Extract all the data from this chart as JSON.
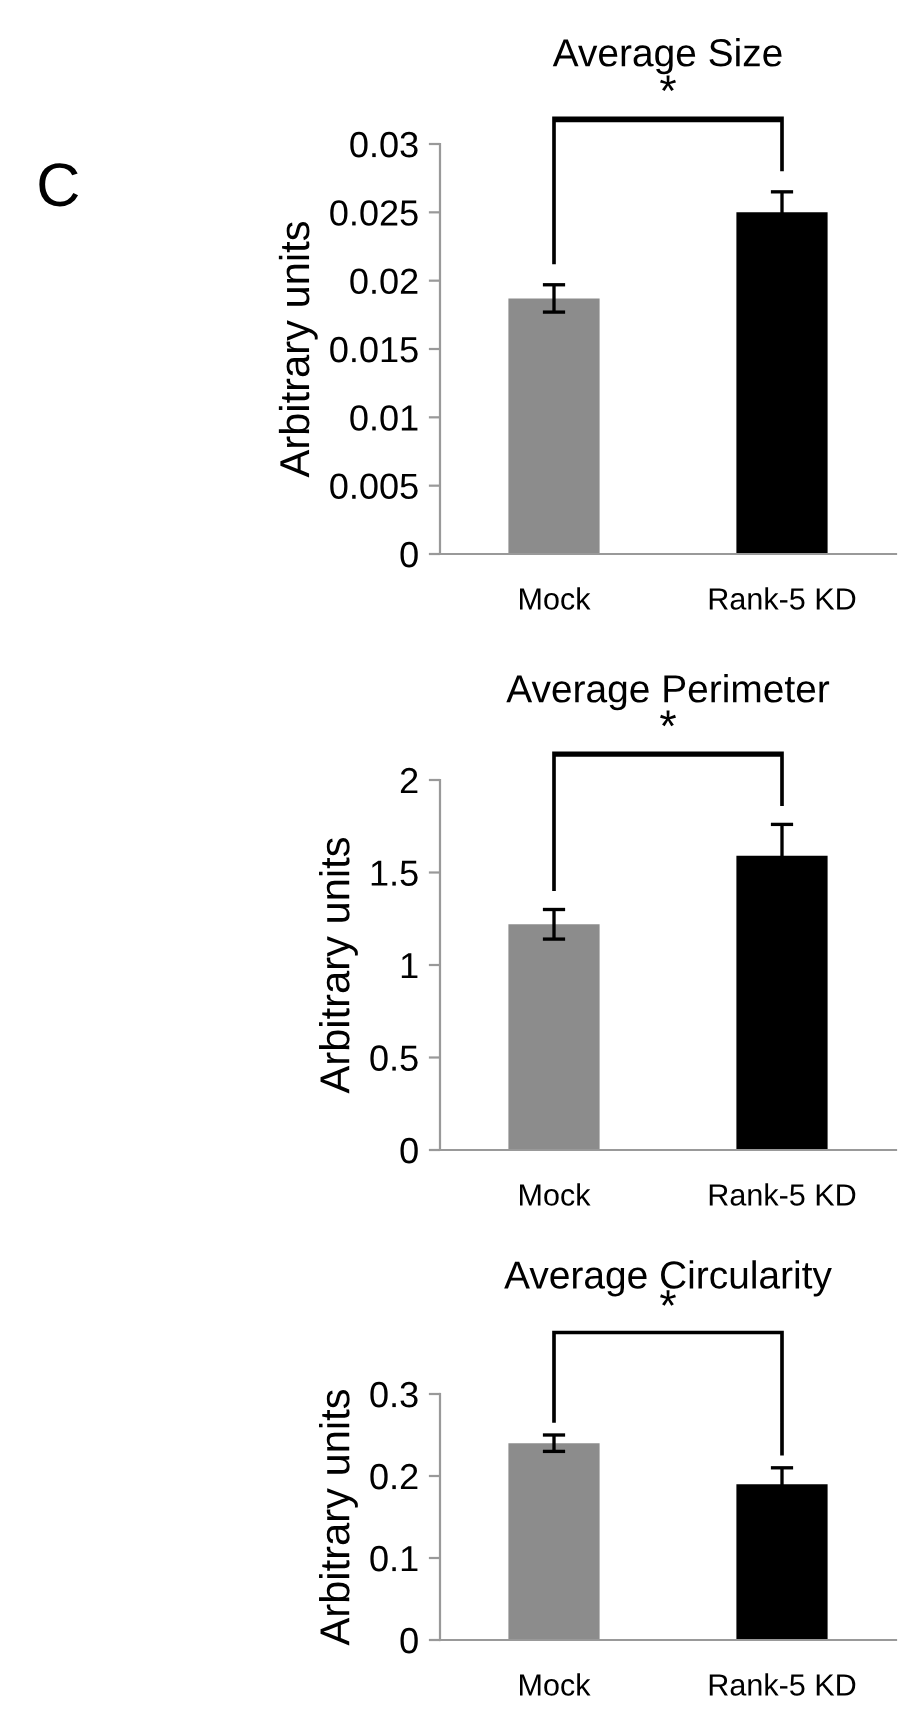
{
  "chart_data": [
    {
      "type": "bar",
      "title": "Average Size",
      "ylabel": "Arbitrary units",
      "categories": [
        "Mock",
        "Rank-5 KD"
      ],
      "values": [
        0.0187,
        0.025
      ],
      "errors": [
        0.001,
        0.0015
      ],
      "colors": [
        "#8c8c8c",
        "#000000"
      ],
      "ylim": [
        0,
        0.03
      ],
      "yticks": [
        0,
        0.005,
        0.01,
        0.015,
        0.02,
        0.025,
        0.03
      ],
      "grid": false,
      "annotations": [
        "C",
        "*"
      ]
    },
    {
      "type": "bar",
      "title": "Average Perimeter",
      "ylabel": "Arbitrary units",
      "categories": [
        "Mock",
        "Rank-5 KD"
      ],
      "values": [
        1.22,
        1.59
      ],
      "errors": [
        0.08,
        0.17
      ],
      "colors": [
        "#8c8c8c",
        "#000000"
      ],
      "ylim": [
        0,
        2
      ],
      "yticks": [
        0,
        0.5,
        1,
        1.5,
        2
      ],
      "grid": false,
      "annotations": [
        "*"
      ]
    },
    {
      "type": "bar",
      "title": "Average Circularity",
      "ylabel": "Arbitrary units",
      "categories": [
        "Mock",
        "Rank-5 KD"
      ],
      "values": [
        0.24,
        0.19
      ],
      "errors": [
        0.01,
        0.02
      ],
      "colors": [
        "#8c8c8c",
        "#000000"
      ],
      "ylim": [
        0,
        0.3
      ],
      "yticks": [
        0,
        0.1,
        0.2,
        0.3
      ],
      "grid": false,
      "annotations": [
        "*"
      ]
    }
  ]
}
